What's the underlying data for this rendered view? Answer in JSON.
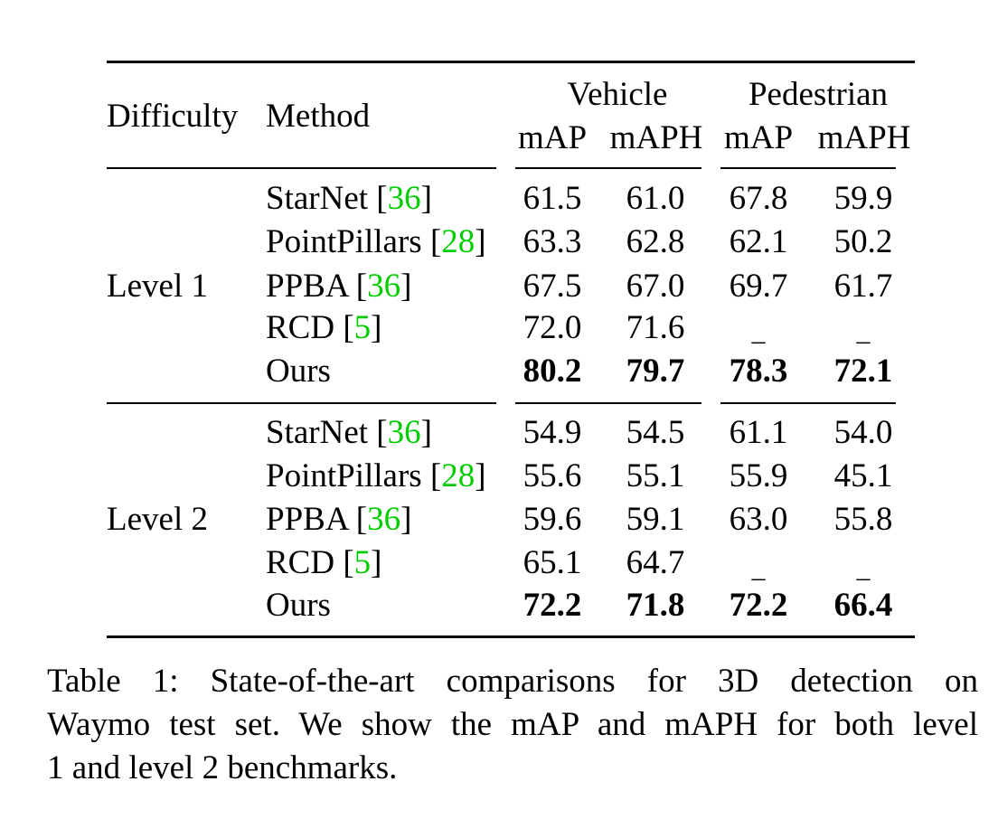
{
  "table": {
    "header": {
      "difficulty": "Difficulty",
      "method": "Method",
      "group_vehicle": "Vehicle",
      "group_pedestrian": "Pedestrian",
      "sub_labels": [
        "mAP",
        "mAPH",
        "mAP",
        "mAPH"
      ]
    },
    "sections": [
      {
        "level": "Level 1",
        "rows": [
          {
            "method": "StarNet",
            "ref": "36",
            "vals": [
              "61.5",
              "61.0",
              "67.8",
              "59.9"
            ],
            "bold": false
          },
          {
            "method": "PointPillars",
            "ref": "28",
            "vals": [
              "63.3",
              "62.8",
              "62.1",
              "50.2"
            ],
            "bold": false
          },
          {
            "method": "PPBA",
            "ref": "36",
            "vals": [
              "67.5",
              "67.0",
              "69.7",
              "61.7"
            ],
            "bold": false
          },
          {
            "method": "RCD",
            "ref": "5",
            "vals": [
              "72.0",
              "71.6",
              "_",
              "_"
            ],
            "bold": false
          },
          {
            "method": "Ours",
            "ref": "",
            "vals": [
              "80.2",
              "79.7",
              "78.3",
              "72.1"
            ],
            "bold": true
          }
        ]
      },
      {
        "level": "Level 2",
        "rows": [
          {
            "method": "StarNet",
            "ref": "36",
            "vals": [
              "54.9",
              "54.5",
              "61.1",
              "54.0"
            ],
            "bold": false
          },
          {
            "method": "PointPillars",
            "ref": "28",
            "vals": [
              "55.6",
              "55.1",
              "55.9",
              "45.1"
            ],
            "bold": false
          },
          {
            "method": "PPBA",
            "ref": "36",
            "vals": [
              "59.6",
              "59.1",
              "63.0",
              "55.8"
            ],
            "bold": false
          },
          {
            "method": "RCD",
            "ref": "5",
            "vals": [
              "65.1",
              "64.7",
              "_",
              "_"
            ],
            "bold": false
          },
          {
            "method": "Ours",
            "ref": "",
            "vals": [
              "72.2",
              "71.8",
              "72.2",
              "66.4"
            ],
            "bold": true
          }
        ]
      }
    ]
  },
  "caption": {
    "lines": [
      "Table 1: State-of-the-art comparisons for 3D detection on",
      "Waymo test set. We show the mAP and mAPH for both level",
      "1 and level 2 benchmarks."
    ]
  },
  "colors": {
    "reference_link": "#00cc00",
    "text": "#000000"
  }
}
